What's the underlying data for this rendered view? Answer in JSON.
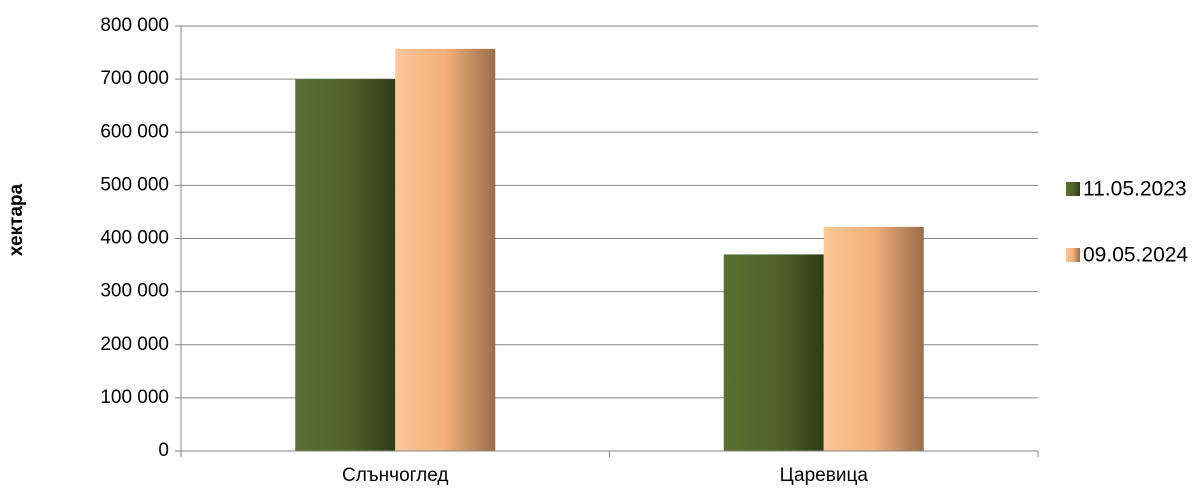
{
  "chart_data": {
    "type": "bar",
    "title": "",
    "xlabel": "",
    "ylabel": "хектара",
    "categories": [
      "Слънчоглед",
      "Царевица"
    ],
    "series": [
      {
        "name": "11.05.2023",
        "values": [
          700000,
          370000
        ],
        "color": "#4f6228"
      },
      {
        "name": "09.05.2024",
        "values": [
          757000,
          422000
        ],
        "color": "#fac090"
      }
    ],
    "ylim": [
      0,
      800000
    ],
    "yticks": [
      "0",
      "100 000",
      "200 000",
      "300 000",
      "400 000",
      "500 000",
      "600 000",
      "700 000",
      "800 000"
    ],
    "grid": true,
    "legend_position": "right"
  }
}
